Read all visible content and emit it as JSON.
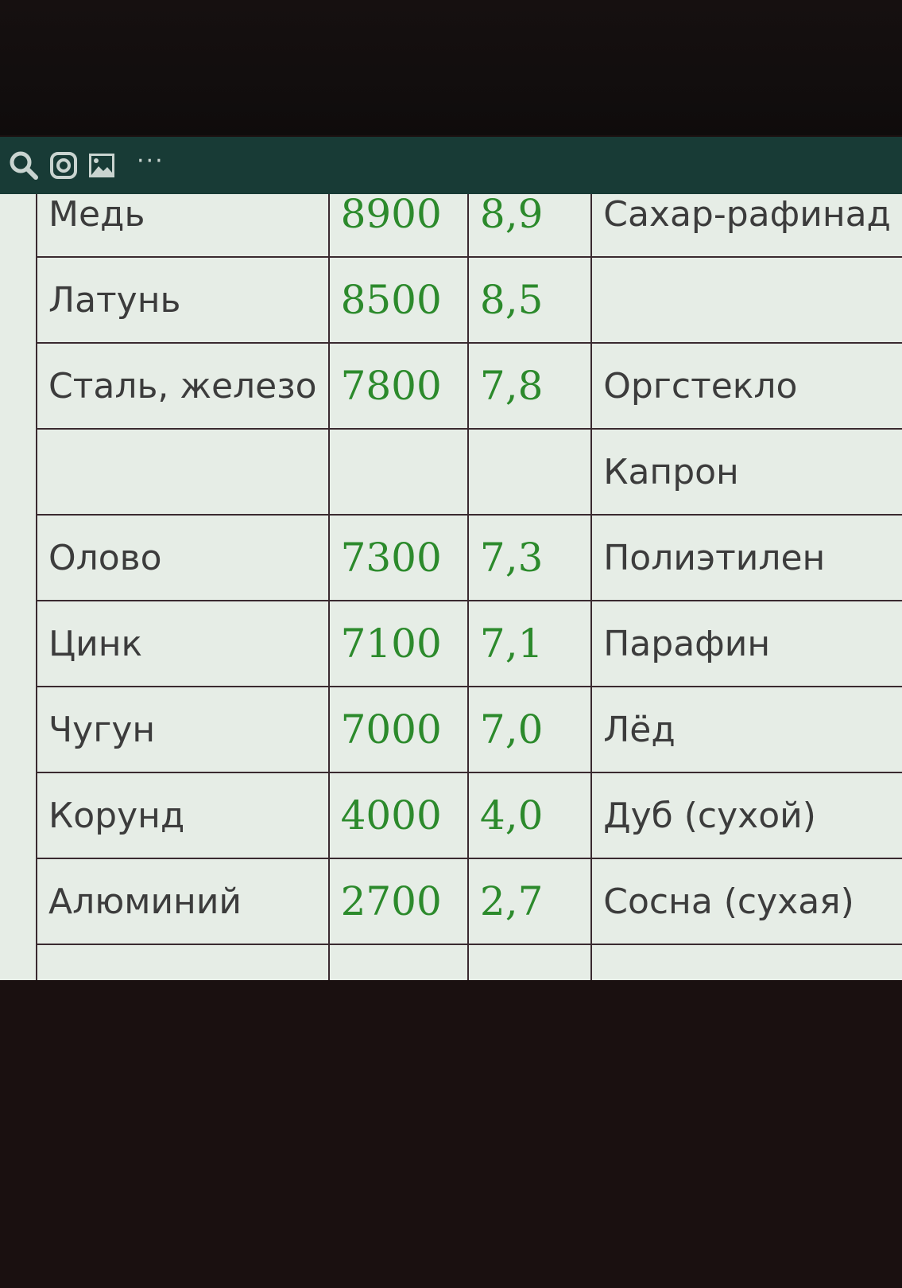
{
  "statusbar": {
    "icons": [
      "search-icon",
      "instagram-icon",
      "image-icon",
      "more-icon"
    ],
    "more": "···"
  },
  "table": {
    "rows": [
      {
        "material": "Медь",
        "kg_m3": "8900",
        "g_cm3": "8,9",
        "other": "Сахар-рафинад"
      },
      {
        "material": "Латунь",
        "kg_m3": "8500",
        "g_cm3": "8,5",
        "other": ""
      },
      {
        "material": "Сталь, железо",
        "kg_m3": "7800",
        "g_cm3": "7,8",
        "other": "Оргстекло"
      },
      {
        "material": "",
        "kg_m3": "",
        "g_cm3": "",
        "other": "Капрон"
      },
      {
        "material": "Олово",
        "kg_m3": "7300",
        "g_cm3": "7,3",
        "other": "Полиэтилен"
      },
      {
        "material": "Цинк",
        "kg_m3": "7100",
        "g_cm3": "7,1",
        "other": "Парафин"
      },
      {
        "material": "Чугун",
        "kg_m3": "7000",
        "g_cm3": "7,0",
        "other": "Лёд"
      },
      {
        "material": "Корунд",
        "kg_m3": "4000",
        "g_cm3": "4,0",
        "other": "Дуб (сухой)"
      },
      {
        "material": "Алюминий",
        "kg_m3": "2700",
        "g_cm3": "2,7",
        "other": "Сосна (сухая)"
      },
      {
        "material": "",
        "kg_m3": "",
        "g_cm3": "",
        "other": ""
      }
    ]
  },
  "colors": {
    "statusbar": "#183b36",
    "numbers": "#2c8a2c",
    "background": "#e6ede6"
  }
}
